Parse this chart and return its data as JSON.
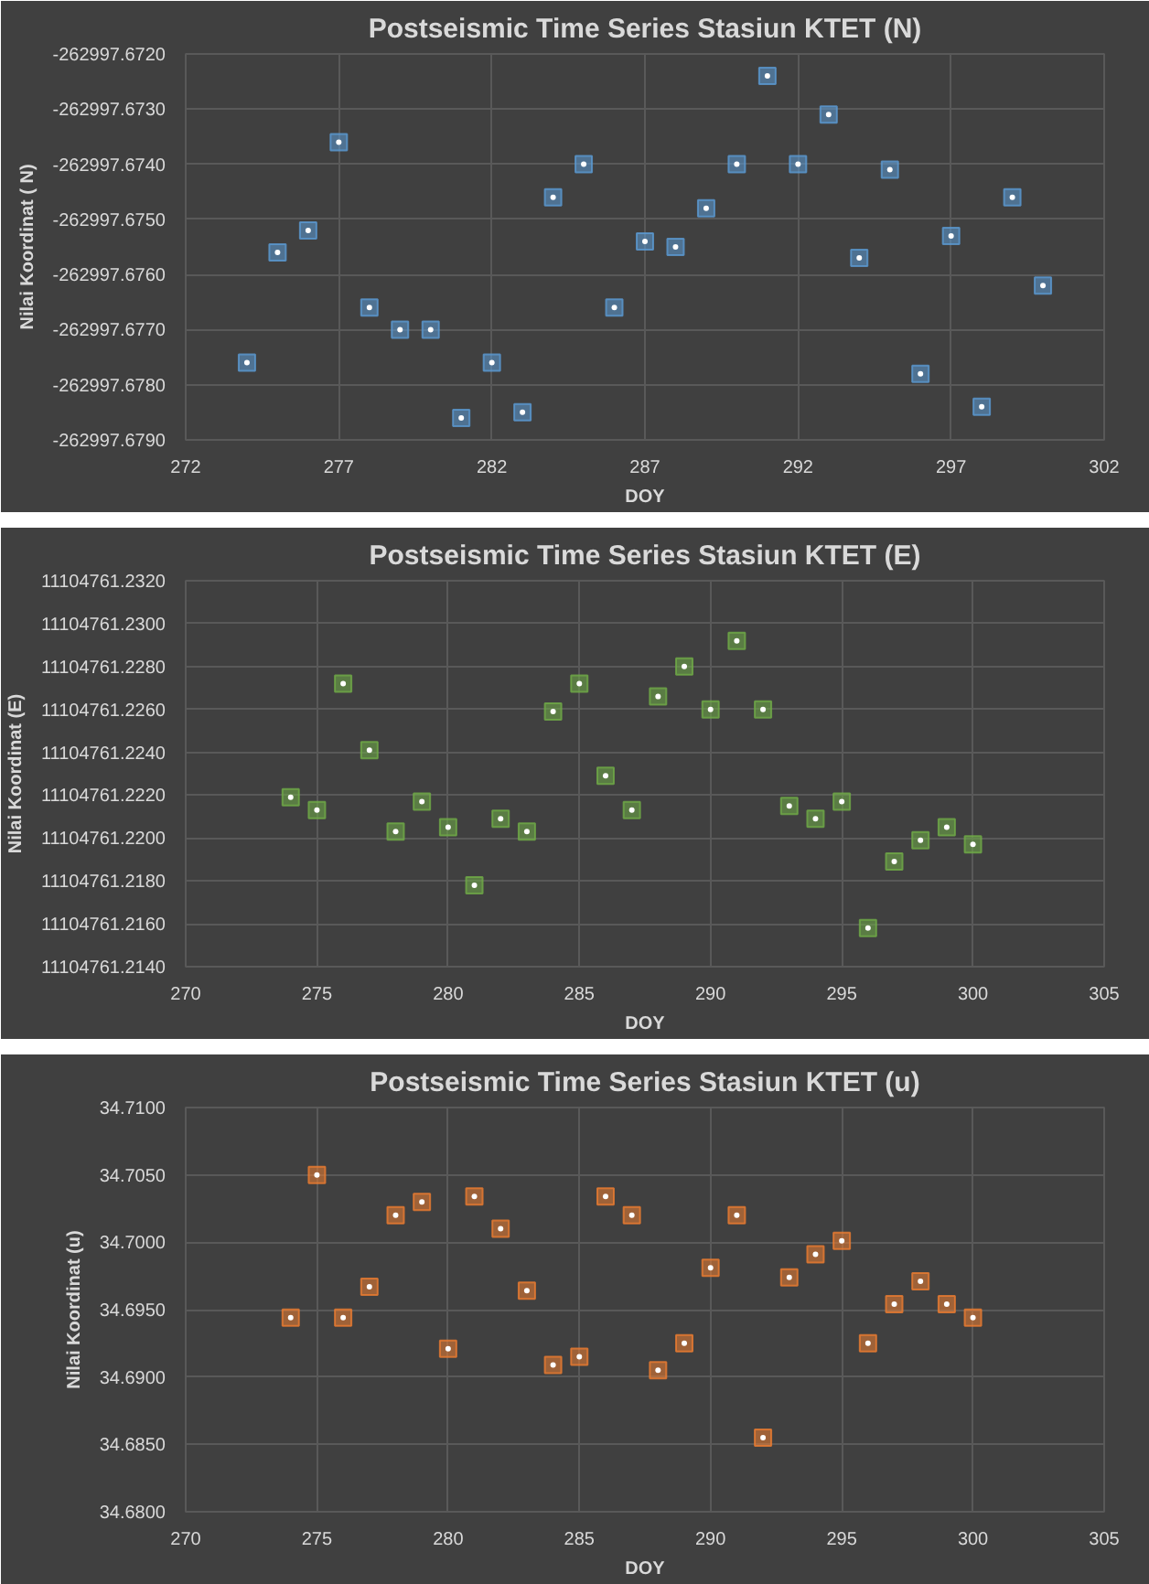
{
  "chart_data": [
    {
      "type": "scatter",
      "title": "Postseismic Time Series Stasiun KTET (N)",
      "xlabel": "DOY",
      "ylabel": "Nilai Koordinat ( N)",
      "marker": "square",
      "grid": true,
      "x": [
        274,
        275,
        276,
        277,
        278,
        279,
        280,
        281,
        282,
        283,
        284,
        285,
        286,
        287,
        288,
        289,
        290,
        291,
        292,
        293,
        294,
        295,
        296,
        297,
        298,
        299,
        300
      ],
      "series": [
        {
          "color": "#5b9bd5",
          "values": [
            -262997.6776,
            -262997.6756,
            -262997.6752,
            -262997.6736,
            -262997.6766,
            -262997.677,
            -262997.677,
            -262997.6786,
            -262997.6776,
            -262997.6785,
            -262997.6746,
            -262997.674,
            -262997.6766,
            -262997.6754,
            -262997.6755,
            -262997.6748,
            -262997.674,
            -262997.6724,
            -262997.674,
            -262997.6731,
            -262997.6757,
            -262997.6741,
            -262997.6778,
            -262997.6753,
            -262997.6784,
            -262997.6746,
            -262997.6762
          ]
        }
      ],
      "xlim": [
        272,
        302
      ],
      "xticks": [
        272,
        277,
        282,
        287,
        292,
        297,
        302
      ],
      "ylim": [
        -262997.679,
        -262997.672
      ],
      "yticks": [
        {
          "value": -262997.679,
          "label": "-262997.6790"
        },
        {
          "value": -262997.678,
          "label": "-262997.6780"
        },
        {
          "value": -262997.677,
          "label": "-262997.6770"
        },
        {
          "value": -262997.676,
          "label": "-262997.6760"
        },
        {
          "value": -262997.675,
          "label": "-262997.6750"
        },
        {
          "value": -262997.674,
          "label": "-262997.6740"
        },
        {
          "value": -262997.673,
          "label": "-262997.6730"
        },
        {
          "value": -262997.672,
          "label": "-262997.6720"
        }
      ]
    },
    {
      "type": "scatter",
      "title": "Postseismic Time Series Stasiun KTET (E)",
      "xlabel": "DOY",
      "ylabel": "Nilai Koordinat (E)",
      "marker": "square",
      "grid": true,
      "x": [
        274,
        275,
        276,
        277,
        278,
        279,
        280,
        281,
        282,
        283,
        284,
        285,
        286,
        287,
        288,
        289,
        290,
        291,
        292,
        293,
        294,
        295,
        296,
        297,
        298,
        299,
        300
      ],
      "series": [
        {
          "color": "#70ad47",
          "values": [
            11104761.2219,
            11104761.2213,
            11104761.2272,
            11104761.2241,
            11104761.2203,
            11104761.2217,
            11104761.2205,
            11104761.2178,
            11104761.2209,
            11104761.2203,
            11104761.2259,
            11104761.2272,
            11104761.2229,
            11104761.2213,
            11104761.2266,
            11104761.228,
            11104761.226,
            11104761.2292,
            11104761.226,
            11104761.2215,
            11104761.2209,
            11104761.2217,
            11104761.2158,
            11104761.2189,
            11104761.2199,
            11104761.2205,
            11104761.2197
          ]
        }
      ],
      "xlim": [
        270,
        305
      ],
      "xticks": [
        270,
        275,
        280,
        285,
        290,
        295,
        300,
        305
      ],
      "ylim": [
        11104761.214,
        11104761.232
      ],
      "yticks": [
        {
          "value": 11104761.214,
          "label": "11104761.2140"
        },
        {
          "value": 11104761.216,
          "label": "11104761.2160"
        },
        {
          "value": 11104761.218,
          "label": "11104761.2180"
        },
        {
          "value": 11104761.22,
          "label": "11104761.2200"
        },
        {
          "value": 11104761.222,
          "label": "11104761.2220"
        },
        {
          "value": 11104761.224,
          "label": "11104761.2240"
        },
        {
          "value": 11104761.226,
          "label": "11104761.2260"
        },
        {
          "value": 11104761.228,
          "label": "11104761.2280"
        },
        {
          "value": 11104761.23,
          "label": "11104761.2300"
        },
        {
          "value": 11104761.232,
          "label": "11104761.2320"
        }
      ]
    },
    {
      "type": "scatter",
      "title": "Postseismic Time Series Stasiun KTET (u)",
      "xlabel": "DOY",
      "ylabel": "Nilai Koordinat (u)",
      "marker": "square",
      "grid": true,
      "x": [
        274,
        275,
        276,
        277,
        278,
        279,
        280,
        281,
        282,
        283,
        284,
        285,
        286,
        287,
        288,
        289,
        290,
        291,
        292,
        293,
        294,
        295,
        296,
        297,
        298,
        299,
        300
      ],
      "series": [
        {
          "color": "#ed7d31",
          "values": [
            34.6944,
            34.705,
            34.6944,
            34.6967,
            34.702,
            34.703,
            34.6921,
            34.7034,
            34.701,
            34.6964,
            34.6909,
            34.6915,
            34.7034,
            34.702,
            34.6905,
            34.6925,
            34.6981,
            34.702,
            34.6855,
            34.6974,
            34.6991,
            34.7001,
            34.6925,
            34.6954,
            34.6971,
            34.6954,
            34.6944
          ]
        }
      ],
      "xlim": [
        270,
        305
      ],
      "xticks": [
        270,
        275,
        280,
        285,
        290,
        295,
        300,
        305
      ],
      "ylim": [
        34.68,
        34.71
      ],
      "yticks": [
        {
          "value": 34.68,
          "label": "34.6800"
        },
        {
          "value": 34.685,
          "label": "34.6850"
        },
        {
          "value": 34.69,
          "label": "34.6900"
        },
        {
          "value": 34.695,
          "label": "34.6950"
        },
        {
          "value": 34.7,
          "label": "34.7000"
        },
        {
          "value": 34.705,
          "label": "34.7050"
        },
        {
          "value": 34.71,
          "label": "34.7100"
        }
      ]
    }
  ]
}
